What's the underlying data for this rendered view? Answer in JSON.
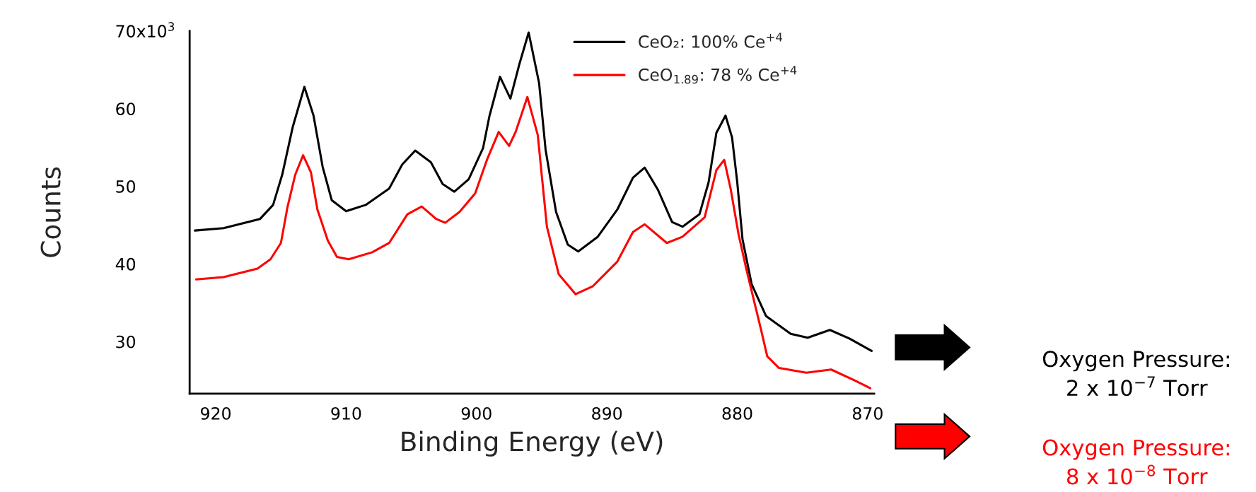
{
  "chart_data": {
    "type": "line",
    "xlabel": "Binding Energy (eV)",
    "ylabel": "Counts",
    "xlim": [
      922,
      869.5
    ],
    "xticks": [
      920,
      910,
      900,
      890,
      880,
      870
    ],
    "ylim": [
      23.3,
      70
    ],
    "yticks": [
      30,
      40,
      50,
      60,
      70
    ],
    "legend": "top",
    "line_style": "solid",
    "marker": "none",
    "grid": false,
    "series": [
      {
        "name": "CeO₂: 100% Ce$^{+4}$",
        "color": "#000000",
        "x": [
          921.6,
          919.4,
          916.6,
          915.6,
          914.9,
          914.1,
          913.2,
          912.5,
          911.8,
          911.1,
          910.0,
          908.5,
          906.7,
          905.7,
          904.7,
          903.5,
          902.6,
          901.7,
          900.6,
          899.5,
          899.0,
          898.2,
          897.4,
          896.7,
          896.0,
          895.2,
          894.7,
          893.9,
          893.0,
          892.2,
          890.7,
          889.2,
          888.0,
          887.1,
          886.1,
          885.0,
          884.2,
          882.9,
          882.2,
          881.6,
          880.9,
          880.4,
          880.0,
          879.6,
          878.9,
          877.8,
          875.9,
          874.6,
          872.9,
          871.4,
          869.7
        ],
        "values": [
          44.3,
          44.6,
          45.8,
          47.6,
          51.5,
          57.6,
          62.8,
          59.1,
          52.5,
          48.2,
          46.8,
          47.6,
          49.7,
          52.8,
          54.6,
          53.1,
          50.3,
          49.3,
          50.9,
          54.9,
          59.1,
          64.1,
          61.3,
          65.8,
          69.8,
          63.3,
          54.7,
          46.7,
          42.5,
          41.6,
          43.5,
          47.0,
          51.1,
          52.4,
          49.6,
          45.4,
          44.8,
          46.4,
          50.5,
          56.9,
          59.1,
          56.3,
          50.5,
          43.2,
          37.4,
          33.3,
          31.0,
          30.5,
          31.5,
          30.4,
          28.8
        ]
      },
      {
        "name": "CeO$_{1.89}$: 78 % Ce$^{+4}$",
        "color": "#ff0000",
        "x": [
          921.5,
          919.4,
          916.8,
          915.8,
          915.0,
          914.5,
          913.9,
          913.3,
          912.7,
          912.2,
          911.4,
          910.7,
          909.8,
          908.0,
          906.7,
          905.3,
          904.2,
          903.1,
          902.4,
          901.3,
          900.1,
          899.2,
          898.3,
          897.5,
          897.0,
          896.1,
          895.3,
          895.0,
          894.6,
          893.7,
          892.4,
          891.1,
          889.2,
          888.0,
          887.1,
          885.4,
          884.2,
          882.5,
          881.6,
          881.0,
          880.5,
          879.9,
          879.3,
          878.2,
          877.7,
          876.8,
          874.7,
          872.8,
          871.0,
          869.8
        ],
        "values": [
          38.0,
          38.3,
          39.4,
          40.6,
          42.7,
          47.3,
          51.5,
          54.0,
          51.8,
          47.0,
          43.0,
          40.9,
          40.6,
          41.5,
          42.7,
          46.4,
          47.4,
          45.8,
          45.3,
          46.7,
          49.1,
          53.4,
          57.0,
          55.2,
          57.0,
          61.5,
          56.6,
          51.5,
          44.8,
          38.7,
          36.1,
          37.1,
          40.3,
          44.1,
          45.1,
          42.7,
          43.5,
          46.0,
          52.1,
          53.4,
          49.6,
          43.8,
          39.3,
          31.7,
          28.1,
          26.6,
          26.0,
          26.4,
          25.0,
          24.0
        ]
      }
    ],
    "annotations": [
      "x10$^{3}$",
      "Oxygen Pressure:\n2 x 10$^{−7}$ Torr",
      "Oxygen Pressure:\n8 x 10$^{−8}$ Torr"
    ]
  }
}
